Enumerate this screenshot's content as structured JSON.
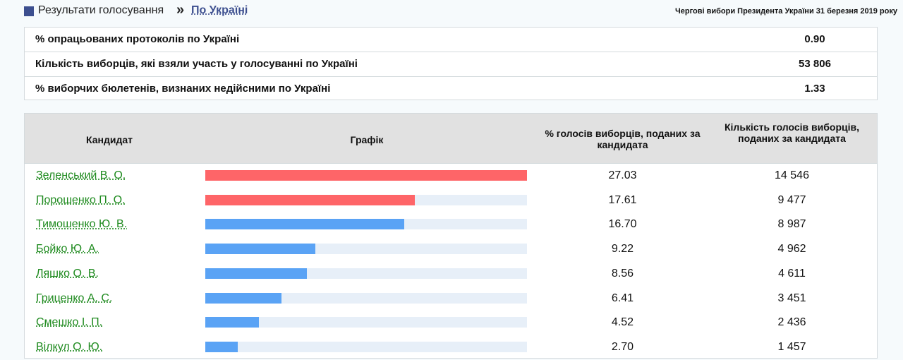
{
  "breadcrumb": {
    "static_label": "Результати голосування",
    "separator": "»",
    "link_label": "По Україні"
  },
  "election_title": "Чергові вибори Президента України 31 березня 2019 року",
  "summary": [
    {
      "label": "% опрацьованих протоколів по Україні",
      "value": "0.90"
    },
    {
      "label": "Кількість виборців, які взяли участь у голосуванні по Україні",
      "value": "53 806"
    },
    {
      "label": "% виборчих бюлетенів, визнаних недійсними по Україні",
      "value": "1.33"
    }
  ],
  "table": {
    "headers": {
      "candidate": "Кандидат",
      "graph": "Графік",
      "percent": "% голосів виборців, поданих за кандидата",
      "count": "Кількість голосів виборців, поданих за кандидата"
    }
  },
  "colors": {
    "leader_bar": "#fe6568",
    "other_bar": "#5aa3f5",
    "bar_track": "#e7eff8",
    "candidate_link": "#1e8a1e",
    "breadcrumb_link": "#3d4f8f"
  },
  "chart_data": {
    "type": "bar",
    "categories": [
      "Зеленський В. О.",
      "Порошенко П. О.",
      "Тимошенко Ю. В.",
      "Бойко Ю. А.",
      "Ляшко О. В.",
      "Гриценко А. С.",
      "Смешко І. П.",
      "Вілкул О. Ю."
    ],
    "values": [
      27.03,
      17.61,
      16.7,
      9.22,
      8.56,
      6.41,
      4.52,
      2.7
    ],
    "value_labels": [
      "27.03",
      "17.61",
      "16.70",
      "9.22",
      "8.56",
      "6.41",
      "4.52",
      "2.70"
    ],
    "counts": [
      "14 546",
      "9 477",
      "8 987",
      "4 962",
      "4 611",
      "3 451",
      "2 436",
      "1 457"
    ],
    "bar_colors": [
      "#fe6568",
      "#fe6568",
      "#5aa3f5",
      "#5aa3f5",
      "#5aa3f5",
      "#5aa3f5",
      "#5aa3f5",
      "#5aa3f5"
    ],
    "xlim": [
      0,
      27.03
    ]
  }
}
